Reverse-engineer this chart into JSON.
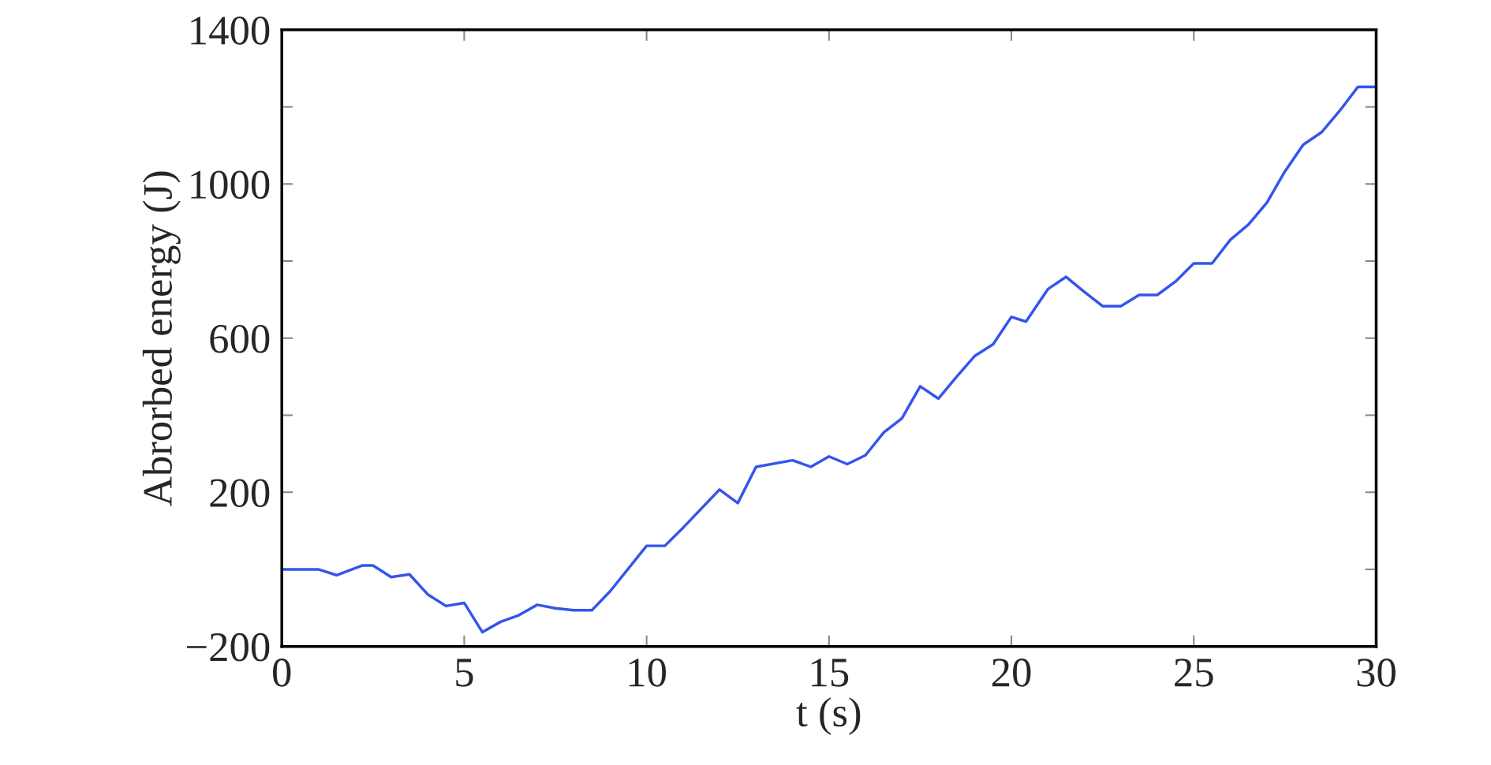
{
  "chart_data": {
    "type": "line",
    "xlabel": "t (s)",
    "ylabel": "Abrorbed energy (J)",
    "x": [
      0,
      1,
      1.5,
      2.2,
      2.5,
      3,
      3.5,
      4,
      4.5,
      5,
      5.5,
      6,
      6.5,
      7,
      7.5,
      8,
      8.5,
      9,
      10,
      10.5,
      11,
      12,
      12.5,
      13,
      14,
      14.5,
      15,
      15.5,
      16,
      16.5,
      17,
      17.5,
      18,
      18.5,
      19,
      19.5,
      20,
      20.4,
      21,
      21.5,
      22,
      22.5,
      23,
      23.5,
      24,
      24.5,
      25,
      25.5,
      26,
      26.5,
      27,
      27.5,
      28,
      28.5,
      29,
      29.5,
      30
    ],
    "series": [
      {
        "color": "#3355ee",
        "values": [
          0,
          0,
          -15,
          10,
          10,
          -20,
          -13,
          -65,
          -95,
          -87,
          -163,
          -136,
          -119,
          -92,
          -101,
          -106,
          -106,
          -57,
          61,
          61,
          108,
          207,
          172,
          266,
          283,
          266,
          293,
          273,
          296,
          355,
          392,
          475,
          443,
          500,
          554,
          584,
          655,
          643,
          727,
          759,
          720,
          683,
          683,
          712,
          712,
          747,
          794,
          794,
          855,
          895,
          951,
          1033,
          1102,
          1134,
          1190,
          1252,
          1252
        ]
      }
    ],
    "xlim": [
      0,
      30
    ],
    "xticks": [
      0,
      5,
      10,
      15,
      20,
      25,
      30
    ],
    "ylim": [
      -200,
      1400
    ],
    "yticks": [
      {
        "value": -200,
        "label": "−200"
      },
      {
        "value": 0,
        "label": null
      },
      200,
      {
        "value": 400,
        "label": null
      },
      600,
      {
        "value": 800,
        "label": null
      },
      1000,
      {
        "value": 1200,
        "label": null
      },
      1400
    ],
    "grid": false,
    "legend": false,
    "marker": "none",
    "line_style": "solid"
  }
}
